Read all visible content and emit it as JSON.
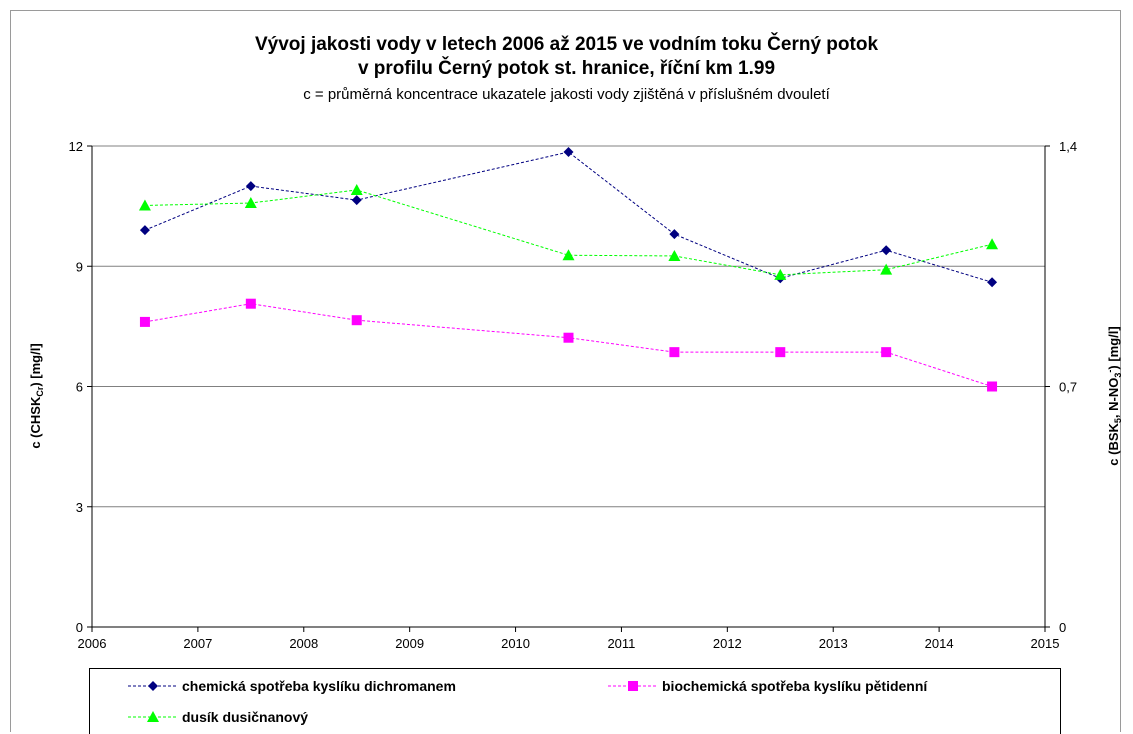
{
  "title_line1": "Vývoj jakosti vody v letech 2006 až 2015 ve vodním toku Černý potok",
  "title_line2": "v profilu Černý potok st. hranice, říční km 1.99",
  "subtitle": "c = průměrná koncentrace ukazatele jakosti vody zjištěná v příslušném dvouletí",
  "chart_data": {
    "type": "line",
    "title": "Vývoj jakosti vody v letech 2006 až 2015 ve vodním toku Černý potok v profilu Černý potok st. hranice, říční km 1.99",
    "subtitle": "c = průměrná koncentrace ukazatele jakosti vody zjištěná v příslušném dvouletí",
    "x_axis": {
      "min": 2006,
      "max": 2015,
      "ticks": [
        2006,
        2007,
        2008,
        2009,
        2010,
        2011,
        2012,
        2013,
        2014,
        2015
      ]
    },
    "y_left": {
      "label_main": "c (CHSK",
      "label_sub": "Cr",
      "label_end": ") [mg/l]",
      "min": 0,
      "max": 12,
      "ticks": [
        0,
        3,
        6,
        9,
        12
      ],
      "tick_labels": [
        "0",
        "3",
        "6",
        "9",
        "12"
      ]
    },
    "y_right": {
      "label_main": "c (BSK",
      "label_sub1": "5",
      "label_mid": ", N-NO",
      "label_sub2": "3",
      "label_sup": "-",
      "label_end": ") [mg/l]",
      "min": 0,
      "max": 1.4,
      "ticks": [
        0,
        0.7,
        1.4
      ],
      "tick_labels": [
        "0",
        "0,7",
        "1,4"
      ]
    },
    "grid": "horizontal",
    "legend_position": "bottom",
    "series": [
      {
        "name": "chemická spotřeba kyslíku dichromanem",
        "axis": "left",
        "color": "#000080",
        "marker": "diamond",
        "x": [
          2006.5,
          2007.5,
          2008.5,
          2010.5,
          2011.5,
          2012.5,
          2013.5,
          2014.5
        ],
        "values": [
          9.9,
          11.0,
          10.65,
          11.85,
          9.8,
          8.7,
          9.4,
          8.6
        ]
      },
      {
        "name": "biochemická spotřeba kyslíku pětidenní",
        "axis": "right",
        "color": "#ff00ff",
        "marker": "square",
        "x": [
          2006.5,
          2007.5,
          2008.5,
          2010.5,
          2011.5,
          2012.5,
          2013.5,
          2014.5
        ],
        "values": [
          0.888,
          0.941,
          0.893,
          0.842,
          0.8,
          0.8,
          0.8,
          0.7
        ]
      },
      {
        "name": "dusík dusičnanový",
        "axis": "right",
        "color": "#00ff00",
        "marker": "triangle",
        "x": [
          2006.5,
          2007.5,
          2008.5,
          2010.5,
          2011.5,
          2012.5,
          2013.5,
          2014.5
        ],
        "values": [
          1.227,
          1.234,
          1.272,
          1.082,
          1.08,
          1.025,
          1.04,
          1.114
        ]
      }
    ]
  },
  "legend": {
    "item1": "chemická spotřeba kyslíku dichromanem",
    "item2": "biochemická spotřeba kyslíku pětidenní",
    "item3": "dusík dusičnanový"
  }
}
